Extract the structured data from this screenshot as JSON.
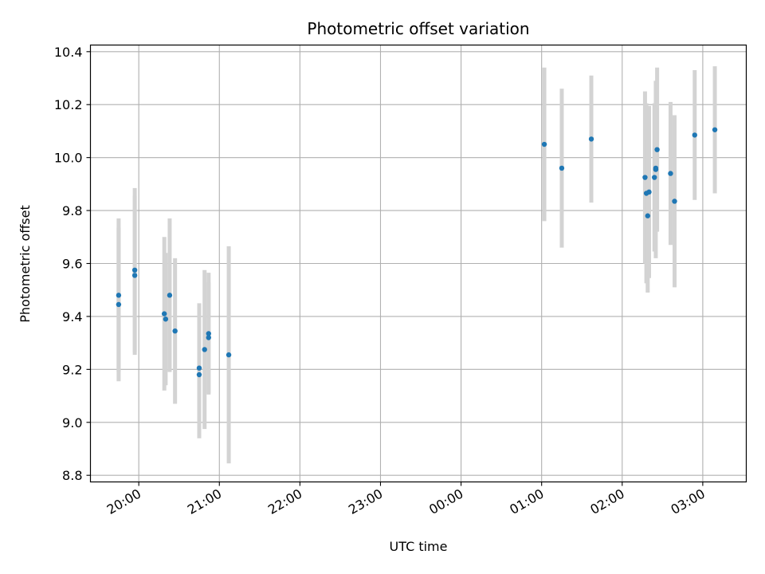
{
  "chart_data": {
    "type": "scatter",
    "title": "Photometric offset variation",
    "xlabel": "UTC time",
    "ylabel": "Photometric offset",
    "x_tick_labels": [
      "20:00",
      "21:00",
      "22:00",
      "23:00",
      "00:00",
      "01:00",
      "02:00",
      "03:00"
    ],
    "x_ticks_hours": [
      0,
      1,
      2,
      3,
      4,
      5,
      6,
      7
    ],
    "y_tick_labels": [
      "8.8",
      "9.0",
      "9.2",
      "9.4",
      "9.6",
      "9.8",
      "10.0",
      "10.2",
      "10.4"
    ],
    "y_ticks": [
      8.8,
      9.0,
      9.2,
      9.4,
      9.6,
      9.8,
      10.0,
      10.2,
      10.4
    ],
    "xlim_hours_from_2000": [
      -0.6,
      7.54
    ],
    "ylim": [
      8.775,
      10.425
    ],
    "grid": true,
    "colors": {
      "point": "#1f77b4",
      "errorbar": "#d3d3d3",
      "grid": "#b0b0b0"
    },
    "points": [
      {
        "t": "19:45",
        "y": 9.48,
        "err": 0.29
      },
      {
        "t": "19:45",
        "y": 9.445,
        "err": 0.29
      },
      {
        "t": "19:57",
        "y": 9.575,
        "err": 0.31
      },
      {
        "t": "19:57",
        "y": 9.555,
        "err": 0.3
      },
      {
        "t": "20:19",
        "y": 9.41,
        "err": 0.29
      },
      {
        "t": "20:20",
        "y": 9.39,
        "err": 0.25
      },
      {
        "t": "20:23",
        "y": 9.48,
        "err": 0.29
      },
      {
        "t": "20:27",
        "y": 9.345,
        "err": 0.275
      },
      {
        "t": "20:45",
        "y": 9.205,
        "err": 0.245
      },
      {
        "t": "20:45",
        "y": 9.18,
        "err": 0.24
      },
      {
        "t": "20:49",
        "y": 9.275,
        "err": 0.3
      },
      {
        "t": "20:52",
        "y": 9.335,
        "err": 0.23
      },
      {
        "t": "20:52",
        "y": 9.32,
        "err": 0.21
      },
      {
        "t": "21:07",
        "y": 9.255,
        "err": 0.41
      },
      {
        "t": "01:02",
        "y": 10.05,
        "err": 0.29
      },
      {
        "t": "01:15",
        "y": 9.96,
        "err": 0.3
      },
      {
        "t": "01:37",
        "y": 10.07,
        "err": 0.24
      },
      {
        "t": "02:17",
        "y": 9.925,
        "err": 0.325
      },
      {
        "t": "02:18",
        "y": 9.865,
        "err": 0.34
      },
      {
        "t": "02:19",
        "y": 9.78,
        "err": 0.29
      },
      {
        "t": "02:20",
        "y": 9.87,
        "err": 0.325
      },
      {
        "t": "02:24",
        "y": 9.925,
        "err": 0.28
      },
      {
        "t": "02:25",
        "y": 9.955,
        "err": 0.335
      },
      {
        "t": "02:26",
        "y": 10.03,
        "err": 0.31
      },
      {
        "t": "02:25",
        "y": 9.96,
        "err": 0.23
      },
      {
        "t": "02:36",
        "y": 9.94,
        "err": 0.27
      },
      {
        "t": "02:39",
        "y": 9.835,
        "err": 0.325
      },
      {
        "t": "02:54",
        "y": 10.085,
        "err": 0.245
      },
      {
        "t": "03:09",
        "y": 10.105,
        "err": 0.24
      }
    ]
  }
}
